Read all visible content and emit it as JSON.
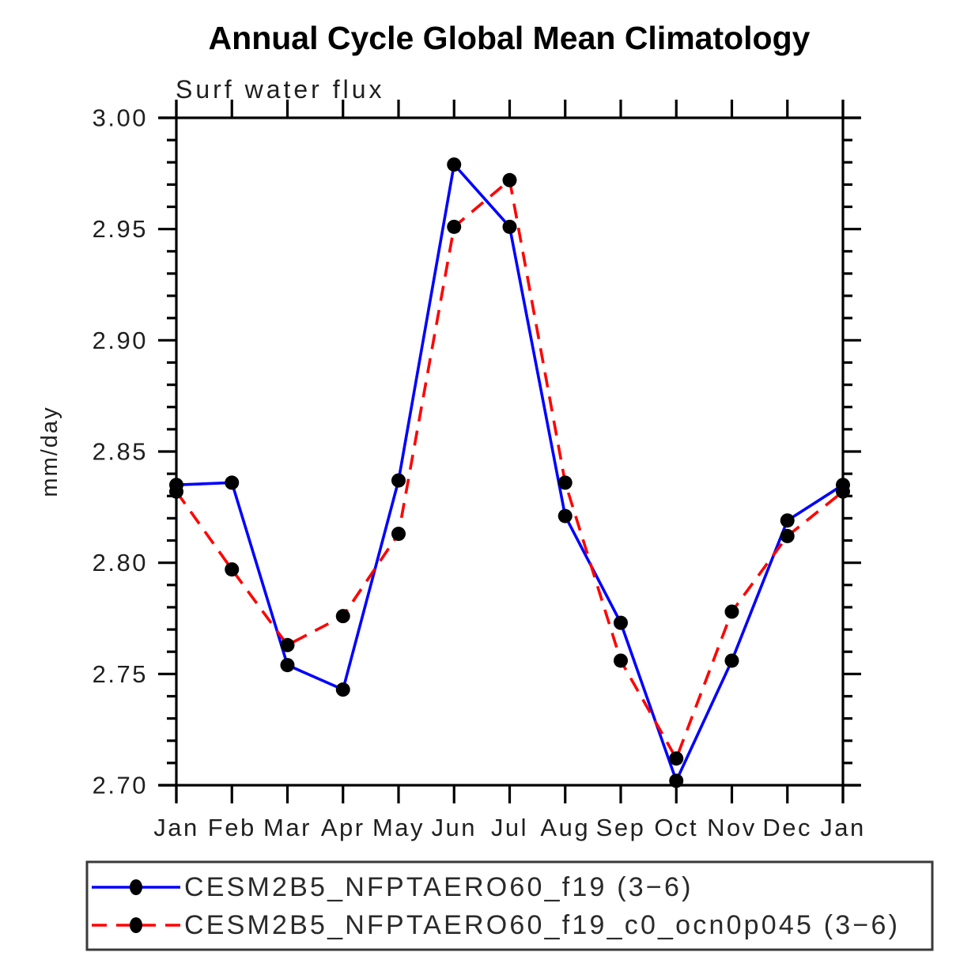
{
  "chart_data": {
    "type": "line",
    "title": "Annual Cycle Global Mean Climatology",
    "subtitle": "Surf water flux",
    "xlabel": "",
    "ylabel": "mm/day",
    "categories": [
      "Jan",
      "Feb",
      "Mar",
      "Apr",
      "May",
      "Jun",
      "Jul",
      "Aug",
      "Sep",
      "Oct",
      "Nov",
      "Dec",
      "Jan"
    ],
    "ylim": [
      2.7,
      3.0
    ],
    "y_major_step": 0.05,
    "y_minor_step": 0.01,
    "grid": false,
    "legend_position": "bottom",
    "axis_color": "#000000",
    "marker_shape": "filled-circle",
    "series": [
      {
        "name": "CESM2B5_NFPTAERO60_f19 (3−6)",
        "color": "#0000ff",
        "style": "solid",
        "marker_color": "#000000",
        "values": [
          2.835,
          2.836,
          2.754,
          2.743,
          2.837,
          2.979,
          2.951,
          2.821,
          2.773,
          2.702,
          2.756,
          2.819,
          2.835
        ]
      },
      {
        "name": "CESM2B5_NFPTAERO60_f19_c0_ocn0p045 (3−6)",
        "color": "#ff0000",
        "style": "dashed",
        "marker_color": "#000000",
        "values": [
          2.832,
          2.797,
          2.763,
          2.776,
          2.813,
          2.951,
          2.972,
          2.836,
          2.756,
          2.712,
          2.778,
          2.812,
          2.832
        ]
      }
    ]
  }
}
